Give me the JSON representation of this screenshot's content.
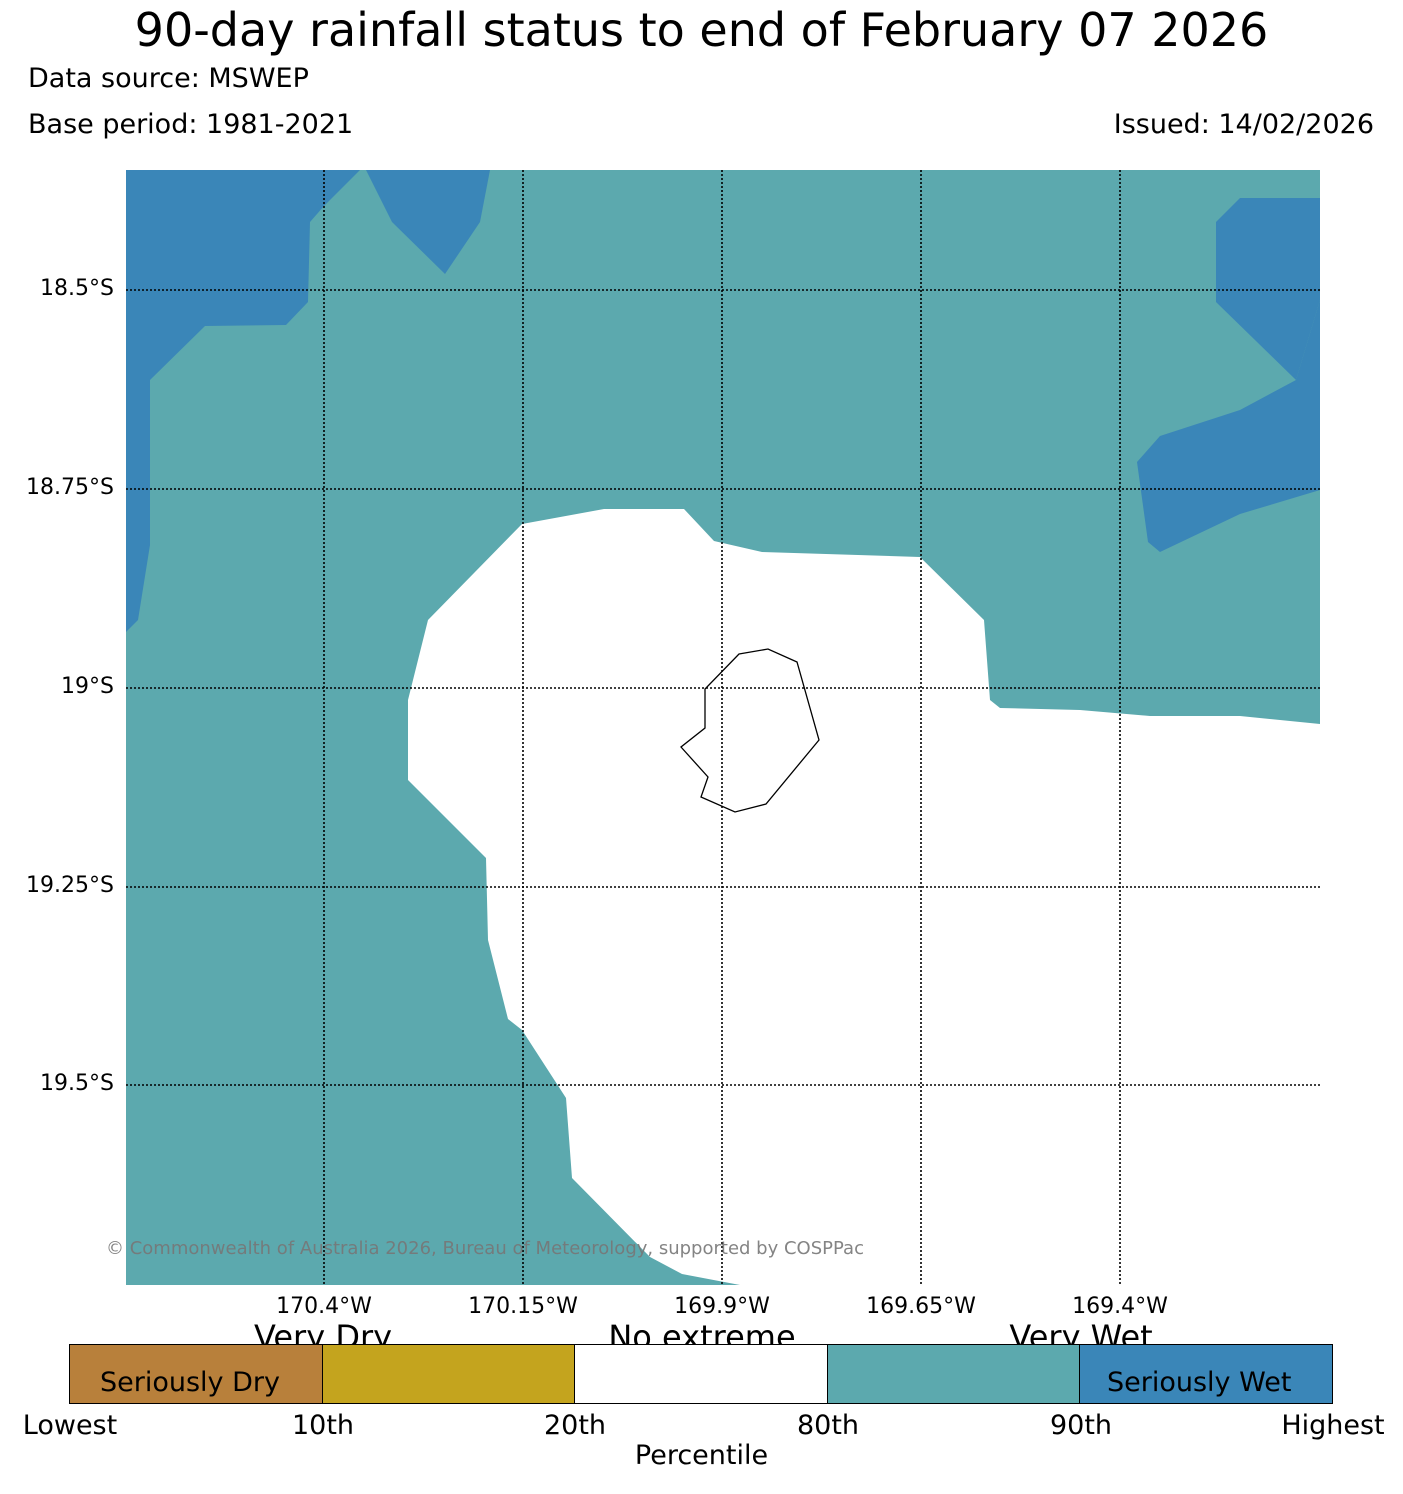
{
  "title": "90-day rainfall status to end of February 07 2026",
  "data_source": "Data source: MSWEP",
  "base_period": "Base period: 1981-2021",
  "issued": "Issued: 14/02/2026",
  "map": {
    "lat_labels": [
      "18.5°S",
      "18.75°S",
      "19°S",
      "19.25°S",
      "19.5°S"
    ],
    "lon_labels": [
      "170.4°W",
      "170.15°W",
      "169.9°W",
      "169.65°W",
      "169.4°W"
    ],
    "colors": {
      "very_wet": "#5ca9ae",
      "seriously_wet": "#3a86b8",
      "no_extreme": "#ffffff",
      "coast": "#000000",
      "grid": "#000000"
    },
    "copyright": "© Commonwealth of Australia 2026, Bureau of Meteorology, supported by COSPPac"
  },
  "legend": {
    "top_labels": [
      "Very Dry",
      "No extreme",
      "Very Wet"
    ],
    "inner_labels": [
      "Seriously Dry",
      "Seriously Wet"
    ],
    "tick_labels": [
      "Lowest",
      "10th",
      "20th",
      "80th",
      "90th",
      "Highest"
    ],
    "axis_title": "Percentile",
    "colors": [
      "#b8803b",
      "#c4a41e",
      "#ffffff",
      "#5ca9ae",
      "#3a86b8"
    ]
  }
}
